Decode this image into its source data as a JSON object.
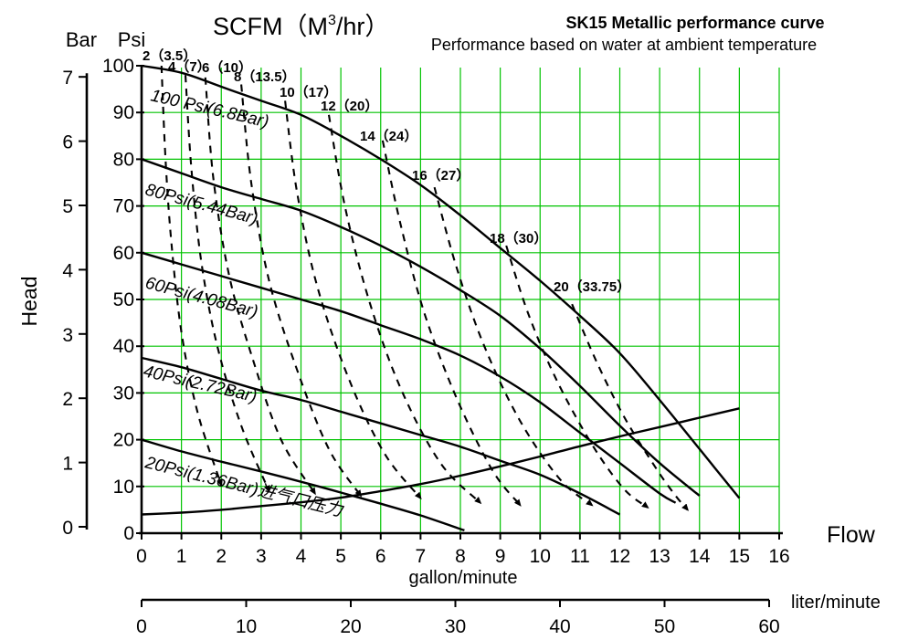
{
  "header": {
    "title": "SK15 Metallic performance curve",
    "subtitle": "Performance based on water at ambient temperature"
  },
  "top_axis_title": {
    "prefix": "SCFM（M",
    "superscript": "3",
    "suffix": "/hr）"
  },
  "axes": {
    "bar": {
      "label": "Bar",
      "ticks": [
        "0",
        "1",
        "2",
        "3",
        "4",
        "5",
        "6",
        "7"
      ]
    },
    "psi": {
      "label": "Psi",
      "ticks": [
        "0",
        "10",
        "20",
        "30",
        "40",
        "50",
        "60",
        "70",
        "80",
        "90",
        "100"
      ]
    },
    "head_label": "Head",
    "gallon": {
      "label": "gallon/minute",
      "ticks": [
        "0",
        "1",
        "2",
        "3",
        "4",
        "5",
        "6",
        "7",
        "8",
        "9",
        "10",
        "11",
        "12",
        "13",
        "14",
        "15",
        "16"
      ]
    },
    "liter": {
      "label": "liter/minute",
      "ticks": [
        "0",
        "10",
        "20",
        "30",
        "40",
        "50",
        "60"
      ]
    },
    "flow_label": "Flow"
  },
  "chart_data": {
    "type": "line",
    "title": "SK15 Metallic performance curve",
    "subtitle": "Performance based on water at ambient temperature",
    "xlabel": "gallon/minute",
    "ylabel": "Head",
    "x_range_gallon": [
      0,
      16
    ],
    "y_range_psi": [
      0,
      100
    ],
    "y_range_bar": [
      0,
      7
    ],
    "secondary_x_axis": {
      "label": "liter/minute",
      "range": [
        0,
        60
      ]
    },
    "top_axis_label": "SCFM（M3/hr）",
    "grid": true,
    "grid_color": "#00C300",
    "curve_color": "#000000",
    "solid_series": [
      {
        "label": "100 Psi(6.8Bar)",
        "points": [
          [
            0,
            100
          ],
          [
            1,
            98.5
          ],
          [
            2,
            95.5
          ],
          [
            3,
            92.5
          ],
          [
            4,
            89.5
          ],
          [
            5,
            85
          ],
          [
            6,
            80
          ],
          [
            7,
            74.5
          ],
          [
            8,
            68
          ],
          [
            9,
            61
          ],
          [
            10,
            54
          ],
          [
            11,
            46.5
          ],
          [
            12,
            38.5
          ],
          [
            13,
            28.5
          ],
          [
            14,
            18
          ],
          [
            15,
            7.5
          ]
        ]
      },
      {
        "label": "80Psi(5.44Bar)",
        "points": [
          [
            0,
            80
          ],
          [
            1,
            77
          ],
          [
            2,
            74
          ],
          [
            3,
            71.5
          ],
          [
            4,
            69
          ],
          [
            5,
            65.5
          ],
          [
            6,
            61.5
          ],
          [
            7,
            57
          ],
          [
            8,
            52
          ],
          [
            9,
            46.5
          ],
          [
            10,
            39.5
          ],
          [
            11,
            31.5
          ],
          [
            12,
            23
          ],
          [
            13,
            15
          ],
          [
            14,
            8
          ]
        ]
      },
      {
        "label": "60Psi(4.08Bar)",
        "points": [
          [
            0,
            60
          ],
          [
            1,
            57.5
          ],
          [
            2,
            55
          ],
          [
            3,
            52.5
          ],
          [
            4,
            50
          ],
          [
            5,
            47.5
          ],
          [
            6,
            44.5
          ],
          [
            7,
            41.5
          ],
          [
            8,
            38
          ],
          [
            9,
            33.5
          ],
          [
            10,
            28
          ],
          [
            11,
            21.5
          ],
          [
            12,
            15
          ],
          [
            13,
            8.5
          ],
          [
            13.4,
            6.5
          ]
        ]
      },
      {
        "label": "40Psi(2.72Bar)",
        "points": [
          [
            0,
            37.5
          ],
          [
            1,
            35.5
          ],
          [
            2,
            33
          ],
          [
            3,
            30.5
          ],
          [
            4,
            28.5
          ],
          [
            5,
            26
          ],
          [
            6,
            23.5
          ],
          [
            7,
            21
          ],
          [
            8,
            18.5
          ],
          [
            9,
            15.5
          ],
          [
            10,
            12.5
          ],
          [
            11,
            8.5
          ],
          [
            12,
            4
          ]
        ]
      },
      {
        "label": "20Psi(1.36Bar)进气口压力",
        "points": [
          [
            0,
            20
          ],
          [
            1,
            17.5
          ],
          [
            2,
            15.3
          ],
          [
            3,
            13.2
          ],
          [
            4,
            11
          ],
          [
            5,
            8.7
          ],
          [
            6,
            6.3
          ],
          [
            7,
            3.8
          ],
          [
            8.1,
            0.6
          ]
        ]
      },
      {
        "label": "",
        "points": [
          [
            0,
            4
          ],
          [
            1,
            4.4
          ],
          [
            2,
            5
          ],
          [
            3,
            5.8
          ],
          [
            4,
            6.6
          ],
          [
            5,
            7.6
          ],
          [
            6,
            9
          ],
          [
            7,
            10.5
          ],
          [
            8,
            12.3
          ],
          [
            9,
            14.3
          ],
          [
            10,
            16.4
          ],
          [
            11,
            18.6
          ],
          [
            12,
            20.7
          ],
          [
            13,
            22.7
          ],
          [
            14,
            24.7
          ],
          [
            15,
            26.7
          ]
        ]
      }
    ],
    "dashed_series": [
      {
        "label": "2（3.5）",
        "points": [
          [
            0.5,
            100
          ],
          [
            0.6,
            80
          ],
          [
            0.75,
            62
          ],
          [
            1.0,
            43
          ],
          [
            1.4,
            26
          ],
          [
            2.0,
            10.3
          ]
        ]
      },
      {
        "label": "4（7）",
        "points": [
          [
            1.1,
            98
          ],
          [
            1.25,
            78
          ],
          [
            1.5,
            58
          ],
          [
            1.9,
            40
          ],
          [
            2.5,
            23
          ],
          [
            3.2,
            9
          ]
        ]
      },
      {
        "label": "6（10）",
        "points": [
          [
            1.6,
            97.5
          ],
          [
            1.8,
            76
          ],
          [
            2.2,
            55
          ],
          [
            2.8,
            37
          ],
          [
            3.5,
            20
          ],
          [
            4.35,
            8.5
          ]
        ]
      },
      {
        "label": "8（13.5）",
        "points": [
          [
            2.5,
            96
          ],
          [
            2.75,
            75
          ],
          [
            3.2,
            54
          ],
          [
            3.9,
            35
          ],
          [
            4.7,
            18
          ],
          [
            5.5,
            8
          ]
        ]
      },
      {
        "label": "10（17）",
        "points": [
          [
            3.6,
            92.5
          ],
          [
            3.9,
            73
          ],
          [
            4.4,
            53
          ],
          [
            5.2,
            33
          ],
          [
            6.1,
            17
          ],
          [
            7.0,
            7.5
          ]
        ]
      },
      {
        "label": "12（20）",
        "points": [
          [
            4.7,
            89.5
          ],
          [
            5.1,
            70
          ],
          [
            5.7,
            50
          ],
          [
            6.5,
            31
          ],
          [
            7.5,
            15
          ],
          [
            8.5,
            6.5
          ]
        ]
      },
      {
        "label": "14（24）",
        "points": [
          [
            6.05,
            84
          ],
          [
            6.5,
            66
          ],
          [
            7.1,
            47
          ],
          [
            7.9,
            29
          ],
          [
            8.8,
            13.5
          ],
          [
            9.5,
            6
          ]
        ]
      },
      {
        "label": "16（27）",
        "points": [
          [
            7.35,
            74
          ],
          [
            7.9,
            57
          ],
          [
            8.6,
            40
          ],
          [
            9.5,
            24
          ],
          [
            10.5,
            11.5
          ],
          [
            11.3,
            6
          ]
        ]
      },
      {
        "label": "18（30）",
        "points": [
          [
            9.15,
            61.5
          ],
          [
            9.7,
            47
          ],
          [
            10.4,
            33
          ],
          [
            11.3,
            19
          ],
          [
            12.1,
            9.5
          ],
          [
            12.7,
            5.5
          ]
        ]
      },
      {
        "label": "20（33.75）",
        "points": [
          [
            10.8,
            49
          ],
          [
            11.4,
            37
          ],
          [
            12.1,
            25
          ],
          [
            12.9,
            14
          ],
          [
            13.4,
            8
          ],
          [
            13.7,
            5
          ]
        ]
      }
    ]
  }
}
